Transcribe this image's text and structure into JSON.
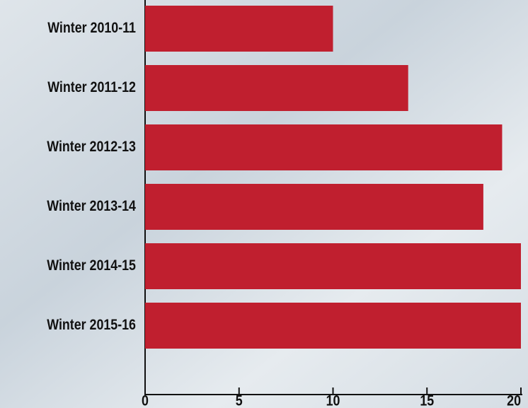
{
  "chart_data": {
    "type": "bar",
    "orientation": "horizontal",
    "categories": [
      "Winter 2010-11",
      "Winter 2011-12",
      "Winter 2012-13",
      "Winter 2013-14",
      "Winter 2014-15",
      "Winter 2015-16"
    ],
    "values": [
      10,
      14,
      19,
      18,
      20,
      20
    ],
    "color": "#c01f2f",
    "xlim": [
      0,
      20
    ],
    "xticks": [
      0,
      5,
      10,
      15,
      20
    ],
    "grid": false
  }
}
